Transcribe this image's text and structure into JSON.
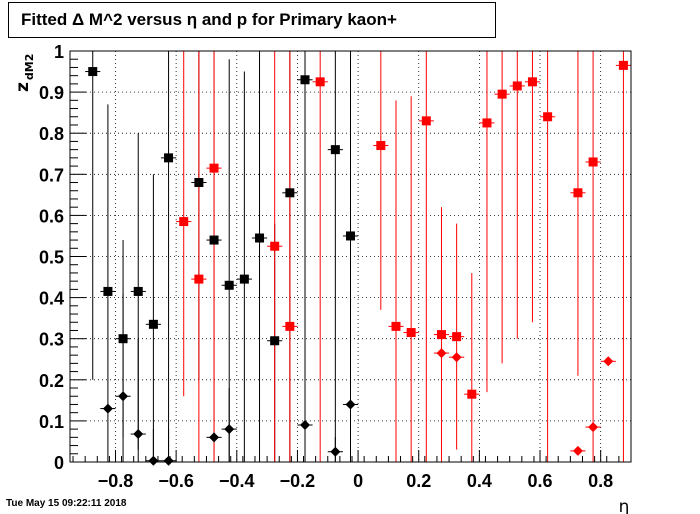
{
  "chart_data": {
    "type": "scatter",
    "title": "Fitted Δ M^2 versus η and p for Primary kaon+",
    "xlabel": "η",
    "ylabel_main": "z",
    "ylabel_sub": "dM2",
    "xlim": [
      -0.95,
      0.9
    ],
    "ylim": [
      0,
      1
    ],
    "x_ticks": [
      "−0.8",
      "−0.6",
      "−0.4",
      "−0.2",
      "0",
      "0.2",
      "0.4",
      "0.6",
      "0.8"
    ],
    "x_tick_values": [
      -0.8,
      -0.6,
      -0.4,
      -0.2,
      0,
      0.2,
      0.4,
      0.6,
      0.8
    ],
    "y_ticks": [
      "0",
      "0.1",
      "0.2",
      "0.3",
      "0.4",
      "0.5",
      "0.6",
      "0.7",
      "0.8",
      "0.9",
      "1"
    ],
    "y_tick_values": [
      0,
      0.1,
      0.2,
      0.3,
      0.4,
      0.5,
      0.6,
      0.7,
      0.8,
      0.9,
      1.0
    ],
    "grid": true,
    "x_error": 0.025,
    "series": [
      {
        "marker": "square",
        "color": "#000000",
        "points": [
          {
            "x": -0.875,
            "y": 0.95,
            "lo": 0.2,
            "hi": 1.0
          },
          {
            "x": -0.825,
            "y": 0.415,
            "lo": 0.0,
            "hi": 0.87
          },
          {
            "x": -0.775,
            "y": 0.3,
            "lo": 0.06,
            "hi": 0.54
          },
          {
            "x": -0.725,
            "y": 0.415,
            "lo": 0.03,
            "hi": 0.8
          },
          {
            "x": -0.675,
            "y": 0.335,
            "lo": 0.0,
            "hi": 0.7
          },
          {
            "x": -0.625,
            "y": 0.74,
            "lo": 0.0,
            "hi": 1.0
          },
          {
            "x": -0.525,
            "y": 0.68,
            "lo": 0.2,
            "hi": 1.0
          },
          {
            "x": -0.475,
            "y": 0.54,
            "lo": 0.0,
            "hi": 1.0
          },
          {
            "x": -0.425,
            "y": 0.43,
            "lo": 0.0,
            "hi": 0.98
          },
          {
            "x": -0.375,
            "y": 0.445,
            "lo": 0.0,
            "hi": 0.95
          },
          {
            "x": -0.325,
            "y": 0.545,
            "lo": 0.0,
            "hi": 1.0
          },
          {
            "x": -0.275,
            "y": 0.295,
            "lo": 0.0,
            "hi": 0.58
          },
          {
            "x": -0.225,
            "y": 0.655,
            "lo": 0.0,
            "hi": 1.0
          },
          {
            "x": -0.175,
            "y": 0.93,
            "lo": 0.0,
            "hi": 1.0
          },
          {
            "x": -0.075,
            "y": 0.76,
            "lo": 0.0,
            "hi": 1.0
          },
          {
            "x": -0.025,
            "y": 0.55,
            "lo": 0.0,
            "hi": 1.0
          }
        ]
      },
      {
        "marker": "diamond",
        "color": "#000000",
        "points": [
          {
            "x": -0.825,
            "y": 0.13,
            "lo": 0.13,
            "hi": 0.13
          },
          {
            "x": -0.775,
            "y": 0.16,
            "lo": 0.0,
            "hi": 0.41
          },
          {
            "x": -0.725,
            "y": 0.068,
            "lo": 0.0,
            "hi": 0.3
          },
          {
            "x": -0.675,
            "y": 0.003,
            "lo": 0.0,
            "hi": 0.08
          },
          {
            "x": -0.625,
            "y": 0.003,
            "lo": 0.0,
            "hi": 0.08
          },
          {
            "x": -0.475,
            "y": 0.06,
            "lo": 0.06,
            "hi": 0.06
          },
          {
            "x": -0.425,
            "y": 0.08,
            "lo": 0.0,
            "hi": 0.18
          },
          {
            "x": -0.175,
            "y": 0.09,
            "lo": 0.09,
            "hi": 0.09
          },
          {
            "x": -0.075,
            "y": 0.025,
            "lo": 0.0,
            "hi": 0.06
          },
          {
            "x": -0.025,
            "y": 0.14,
            "lo": 0.14,
            "hi": 0.14
          }
        ]
      },
      {
        "marker": "square",
        "color": "#ff0000",
        "points": [
          {
            "x": -0.575,
            "y": 0.585,
            "lo": 0.16,
            "hi": 1.0
          },
          {
            "x": -0.525,
            "y": 0.445,
            "lo": 0.0,
            "hi": 1.0
          },
          {
            "x": -0.475,
            "y": 0.715,
            "lo": 0.0,
            "hi": 1.0
          },
          {
            "x": -0.275,
            "y": 0.525,
            "lo": 0.0,
            "hi": 1.0
          },
          {
            "x": -0.225,
            "y": 0.33,
            "lo": 0.0,
            "hi": 1.0
          },
          {
            "x": -0.125,
            "y": 0.925,
            "lo": 0.0,
            "hi": 1.0
          },
          {
            "x": 0.075,
            "y": 0.77,
            "lo": 0.37,
            "hi": 1.0
          },
          {
            "x": 0.125,
            "y": 0.33,
            "lo": 0.0,
            "hi": 0.88
          },
          {
            "x": 0.175,
            "y": 0.315,
            "lo": 0.0,
            "hi": 0.89
          },
          {
            "x": 0.225,
            "y": 0.83,
            "lo": 0.0,
            "hi": 1.0
          },
          {
            "x": 0.275,
            "y": 0.31,
            "lo": 0.0,
            "hi": 0.62
          },
          {
            "x": 0.325,
            "y": 0.305,
            "lo": 0.03,
            "hi": 0.58
          },
          {
            "x": 0.375,
            "y": 0.165,
            "lo": 0.0,
            "hi": 0.46
          },
          {
            "x": 0.425,
            "y": 0.825,
            "lo": 0.17,
            "hi": 1.0
          },
          {
            "x": 0.475,
            "y": 0.895,
            "lo": 0.24,
            "hi": 1.0
          },
          {
            "x": 0.525,
            "y": 0.915,
            "lo": 0.3,
            "hi": 1.0
          },
          {
            "x": 0.575,
            "y": 0.925,
            "lo": 0.34,
            "hi": 1.0
          },
          {
            "x": 0.625,
            "y": 0.84,
            "lo": 0.0,
            "hi": 1.0
          },
          {
            "x": 0.725,
            "y": 0.655,
            "lo": 0.21,
            "hi": 1.0
          },
          {
            "x": 0.775,
            "y": 0.73,
            "lo": 0.0,
            "hi": 1.0
          },
          {
            "x": 0.875,
            "y": 0.965,
            "lo": 0.0,
            "hi": 1.0
          }
        ]
      },
      {
        "marker": "diamond",
        "color": "#ff0000",
        "points": [
          {
            "x": 0.275,
            "y": 0.265,
            "lo": 0.265,
            "hi": 0.265
          },
          {
            "x": 0.325,
            "y": 0.255,
            "lo": 0.255,
            "hi": 0.255
          },
          {
            "x": 0.725,
            "y": 0.027,
            "lo": 0.027,
            "hi": 0.027
          },
          {
            "x": 0.775,
            "y": 0.085,
            "lo": 0.085,
            "hi": 0.085
          },
          {
            "x": 0.825,
            "y": 0.245,
            "lo": 0.245,
            "hi": 0.245
          }
        ]
      }
    ]
  },
  "footer": {
    "date_stamp": "Tue May 15 09:22:11 2018"
  }
}
